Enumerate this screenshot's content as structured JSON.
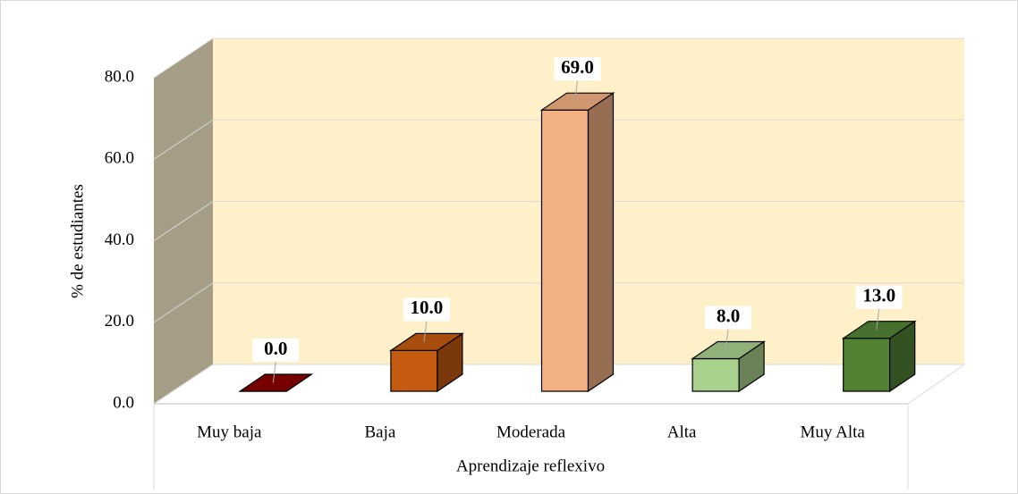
{
  "chart_data": {
    "type": "bar3d",
    "categories": [
      "Muy baja",
      "Baja",
      "Moderada",
      "Alta",
      "Muy Alta"
    ],
    "values": [
      0,
      10,
      69,
      8,
      13
    ],
    "value_labels": [
      "0.0",
      "10.0",
      "69.0",
      "8.0",
      "13.0"
    ],
    "colors": [
      "#8b0000",
      "#c55a11",
      "#f4b183",
      "#a9d18e",
      "#548235"
    ],
    "xlabel": "Aprendizaje reflexivo",
    "ylabel": "% de estudiantes",
    "ylim": [
      0,
      80
    ],
    "yticks": [
      {
        "value": 0,
        "label": "0.0"
      },
      {
        "value": 20,
        "label": "20.0"
      },
      {
        "value": 40,
        "label": "40.0"
      },
      {
        "value": 60,
        "label": "60.0"
      },
      {
        "value": 80,
        "label": "80.0"
      }
    ],
    "grid": true
  }
}
